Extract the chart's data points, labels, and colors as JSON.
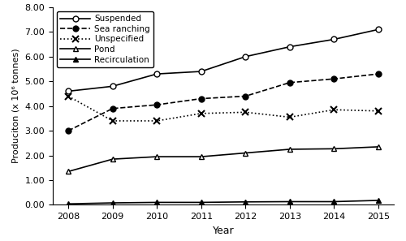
{
  "years": [
    2008,
    2009,
    2010,
    2011,
    2012,
    2013,
    2014,
    2015
  ],
  "suspended": [
    4.6,
    4.8,
    5.3,
    5.4,
    6.0,
    6.4,
    6.7,
    7.1
  ],
  "sea_ranching": [
    3.0,
    3.9,
    4.05,
    4.3,
    4.4,
    4.95,
    5.1,
    5.3
  ],
  "unspecified": [
    4.4,
    3.4,
    3.4,
    3.7,
    3.75,
    3.55,
    3.85,
    3.8
  ],
  "pond": [
    1.35,
    1.85,
    1.95,
    1.95,
    2.1,
    2.25,
    2.27,
    2.35
  ],
  "recirculation": [
    0.04,
    0.08,
    0.1,
    0.1,
    0.12,
    0.13,
    0.13,
    0.18
  ],
  "ylabel": "Produciton (x 10⁶ tonnes)",
  "xlabel": "Year",
  "ylim": [
    0.0,
    8.0
  ],
  "yticks": [
    0.0,
    1.0,
    2.0,
    3.0,
    4.0,
    5.0,
    6.0,
    7.0,
    8.0
  ],
  "legend_labels": [
    "Suspended",
    "Sea ranching",
    "Unspecified",
    "Pond",
    "Recirculation"
  ],
  "line_color": "black",
  "background_color": "white",
  "figsize": [
    5.0,
    2.97
  ],
  "dpi": 100
}
